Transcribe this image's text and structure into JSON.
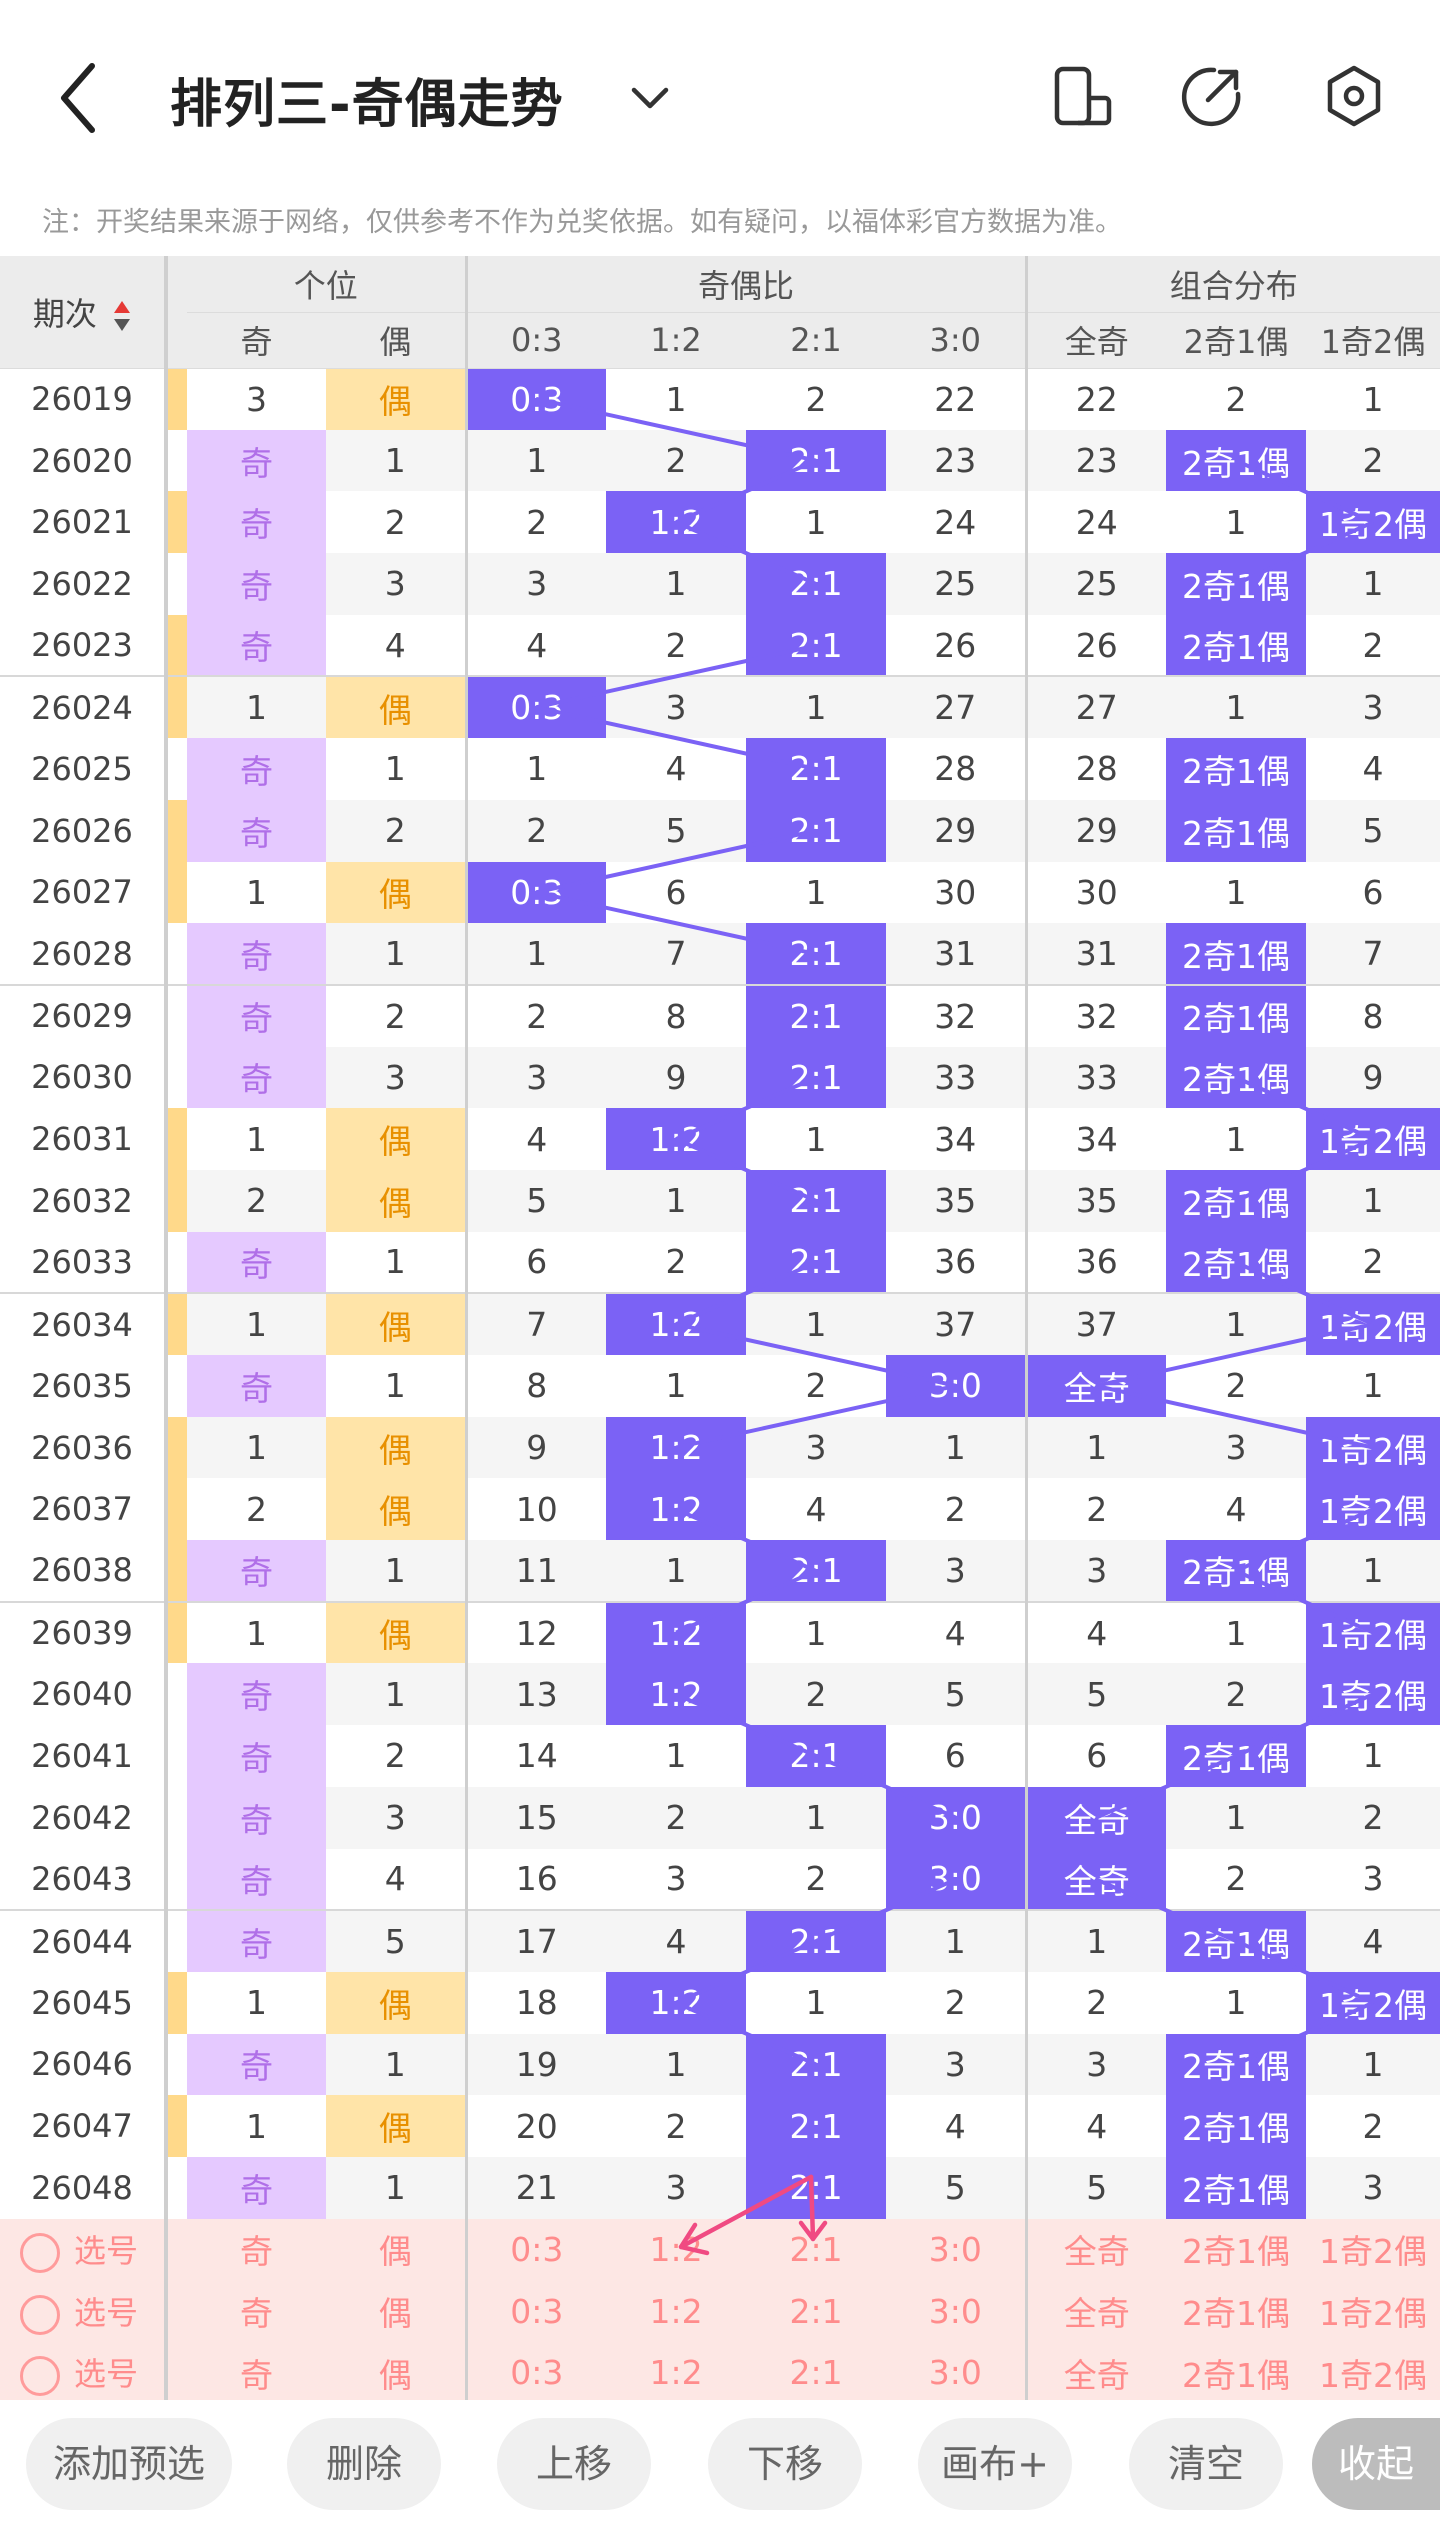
{
  "header": {
    "title": "排列三-奇偶走势"
  },
  "notice": "注：开奖结果来源于网络，仅供参考不作为兑奖依据。如有疑问，以福体彩官方数据为准。",
  "table": {
    "col_qici": "期次",
    "groups": [
      "个位",
      "奇偶比",
      "组合分布"
    ],
    "subs": [
      "奇",
      "偶",
      "0:3",
      "1:2",
      "2:1",
      "3:0",
      "全奇",
      "2奇1偶",
      "1奇2偶"
    ],
    "rows": [
      {
        "id": "26019",
        "bar": "even",
        "u": [
          "3",
          "偶"
        ],
        "r": [
          "0:3",
          "1",
          "2",
          "22"
        ],
        "c": [
          "22",
          "2",
          "1"
        ]
      },
      {
        "id": "26020",
        "bar": "odd",
        "u": [
          "奇",
          "1"
        ],
        "r": [
          "1",
          "2",
          "2:1",
          "23"
        ],
        "c": [
          "23",
          "2奇1偶",
          "2"
        ]
      },
      {
        "id": "26021",
        "bar": "even",
        "u": [
          "奇",
          "2"
        ],
        "r": [
          "2",
          "1:2",
          "1",
          "24"
        ],
        "c": [
          "24",
          "1",
          "1奇2偶"
        ]
      },
      {
        "id": "26022",
        "bar": "odd",
        "u": [
          "奇",
          "3"
        ],
        "r": [
          "3",
          "1",
          "2:1",
          "25"
        ],
        "c": [
          "25",
          "2奇1偶",
          "1"
        ]
      },
      {
        "id": "26023",
        "bar": "even",
        "u": [
          "奇",
          "4"
        ],
        "r": [
          "4",
          "2",
          "2:1",
          "26"
        ],
        "c": [
          "26",
          "2奇1偶",
          "2"
        ]
      },
      {
        "id": "26024",
        "bar": "even",
        "u": [
          "1",
          "偶"
        ],
        "r": [
          "0:3",
          "3",
          "1",
          "27"
        ],
        "c": [
          "27",
          "1",
          "3"
        ]
      },
      {
        "id": "26025",
        "bar": "odd",
        "u": [
          "奇",
          "1"
        ],
        "r": [
          "1",
          "4",
          "2:1",
          "28"
        ],
        "c": [
          "28",
          "2奇1偶",
          "4"
        ]
      },
      {
        "id": "26026",
        "bar": "even",
        "u": [
          "奇",
          "2"
        ],
        "r": [
          "2",
          "5",
          "2:1",
          "29"
        ],
        "c": [
          "29",
          "2奇1偶",
          "5"
        ]
      },
      {
        "id": "26027",
        "bar": "even",
        "u": [
          "1",
          "偶"
        ],
        "r": [
          "0:3",
          "6",
          "1",
          "30"
        ],
        "c": [
          "30",
          "1",
          "6"
        ]
      },
      {
        "id": "26028",
        "bar": "odd",
        "u": [
          "奇",
          "1"
        ],
        "r": [
          "1",
          "7",
          "2:1",
          "31"
        ],
        "c": [
          "31",
          "2奇1偶",
          "7"
        ]
      },
      {
        "id": "26029",
        "bar": "odd",
        "u": [
          "奇",
          "2"
        ],
        "r": [
          "2",
          "8",
          "2:1",
          "32"
        ],
        "c": [
          "32",
          "2奇1偶",
          "8"
        ]
      },
      {
        "id": "26030",
        "bar": "odd",
        "u": [
          "奇",
          "3"
        ],
        "r": [
          "3",
          "9",
          "2:1",
          "33"
        ],
        "c": [
          "33",
          "2奇1偶",
          "9"
        ]
      },
      {
        "id": "26031",
        "bar": "even",
        "u": [
          "1",
          "偶"
        ],
        "r": [
          "4",
          "1:2",
          "1",
          "34"
        ],
        "c": [
          "34",
          "1",
          "1奇2偶"
        ]
      },
      {
        "id": "26032",
        "bar": "even",
        "u": [
          "2",
          "偶"
        ],
        "r": [
          "5",
          "1",
          "2:1",
          "35"
        ],
        "c": [
          "35",
          "2奇1偶",
          "1"
        ]
      },
      {
        "id": "26033",
        "bar": "odd",
        "u": [
          "奇",
          "1"
        ],
        "r": [
          "6",
          "2",
          "2:1",
          "36"
        ],
        "c": [
          "36",
          "2奇1偶",
          "2"
        ]
      },
      {
        "id": "26034",
        "bar": "even",
        "u": [
          "1",
          "偶"
        ],
        "r": [
          "7",
          "1:2",
          "1",
          "37"
        ],
        "c": [
          "37",
          "1",
          "1奇2偶"
        ]
      },
      {
        "id": "26035",
        "bar": "odd",
        "u": [
          "奇",
          "1"
        ],
        "r": [
          "8",
          "1",
          "2",
          "3:0"
        ],
        "c": [
          "全奇",
          "2",
          "1"
        ]
      },
      {
        "id": "26036",
        "bar": "even",
        "u": [
          "1",
          "偶"
        ],
        "r": [
          "9",
          "1:2",
          "3",
          "1"
        ],
        "c": [
          "1",
          "3",
          "1奇2偶"
        ]
      },
      {
        "id": "26037",
        "bar": "even",
        "u": [
          "2",
          "偶"
        ],
        "r": [
          "10",
          "1:2",
          "4",
          "2"
        ],
        "c": [
          "2",
          "4",
          "1奇2偶"
        ]
      },
      {
        "id": "26038",
        "bar": "even",
        "u": [
          "奇",
          "1"
        ],
        "r": [
          "11",
          "1",
          "2:1",
          "3"
        ],
        "c": [
          "3",
          "2奇1偶",
          "1"
        ]
      },
      {
        "id": "26039",
        "bar": "even",
        "u": [
          "1",
          "偶"
        ],
        "r": [
          "12",
          "1:2",
          "1",
          "4"
        ],
        "c": [
          "4",
          "1",
          "1奇2偶"
        ]
      },
      {
        "id": "26040",
        "bar": "odd",
        "u": [
          "奇",
          "1"
        ],
        "r": [
          "13",
          "1:2",
          "2",
          "5"
        ],
        "c": [
          "5",
          "2",
          "1奇2偶"
        ]
      },
      {
        "id": "26041",
        "bar": "odd",
        "u": [
          "奇",
          "2"
        ],
        "r": [
          "14",
          "1",
          "2:1",
          "6"
        ],
        "c": [
          "6",
          "2奇1偶",
          "1"
        ]
      },
      {
        "id": "26042",
        "bar": "odd",
        "u": [
          "奇",
          "3"
        ],
        "r": [
          "15",
          "2",
          "1",
          "3:0"
        ],
        "c": [
          "全奇",
          "1",
          "2"
        ]
      },
      {
        "id": "26043",
        "bar": "odd",
        "u": [
          "奇",
          "4"
        ],
        "r": [
          "16",
          "3",
          "2",
          "3:0"
        ],
        "c": [
          "全奇",
          "2",
          "3"
        ]
      },
      {
        "id": "26044",
        "bar": "odd",
        "u": [
          "奇",
          "5"
        ],
        "r": [
          "17",
          "4",
          "2:1",
          "1"
        ],
        "c": [
          "1",
          "2奇1偶",
          "4"
        ]
      },
      {
        "id": "26045",
        "bar": "even",
        "u": [
          "1",
          "偶"
        ],
        "r": [
          "18",
          "1:2",
          "1",
          "2"
        ],
        "c": [
          "2",
          "1",
          "1奇2偶"
        ]
      },
      {
        "id": "26046",
        "bar": "odd",
        "u": [
          "奇",
          "1"
        ],
        "r": [
          "19",
          "1",
          "2:1",
          "3"
        ],
        "c": [
          "3",
          "2奇1偶",
          "1"
        ]
      },
      {
        "id": "26047",
        "bar": "even",
        "u": [
          "1",
          "偶"
        ],
        "r": [
          "20",
          "2",
          "2:1",
          "4"
        ],
        "c": [
          "4",
          "2奇1偶",
          "2"
        ]
      },
      {
        "id": "26048",
        "bar": "odd",
        "u": [
          "奇",
          "1"
        ],
        "r": [
          "21",
          "3",
          "2:1",
          "5"
        ],
        "c": [
          "5",
          "2奇1偶",
          "3"
        ]
      }
    ],
    "select_rows": [
      {
        "label": "选号",
        "cells": [
          "奇",
          "偶",
          "0:3",
          "1:2",
          "2:1",
          "3:0",
          "全奇",
          "2奇1偶",
          "1奇2偶"
        ]
      },
      {
        "label": "选号",
        "cells": [
          "奇",
          "偶",
          "0:3",
          "1:2",
          "2:1",
          "3:0",
          "全奇",
          "2奇1偶",
          "1奇2偶"
        ]
      },
      {
        "label": "选号",
        "cells": [
          "奇",
          "偶",
          "0:3",
          "1:2",
          "2:1",
          "3:0",
          "全奇",
          "2奇1偶",
          "1奇2偶"
        ]
      }
    ]
  },
  "toolbar": {
    "add_preselect": "添加预选",
    "delete": "删除",
    "move_up": "上移",
    "move_down": "下移",
    "canvas": "画布+",
    "clear": "清空",
    "collapse": "收起"
  },
  "colors": {
    "highlight": "#7b62f5",
    "odd_bg": "#e5c9ff",
    "even_bg": "#ffe4a8",
    "select_bg": "#fde7e4",
    "arrow": "#f04a82"
  },
  "icons": [
    "back-arrow-icon",
    "chevron-down-icon",
    "phone-rotate-icon",
    "share-icon",
    "settings-icon",
    "sort-icon"
  ]
}
